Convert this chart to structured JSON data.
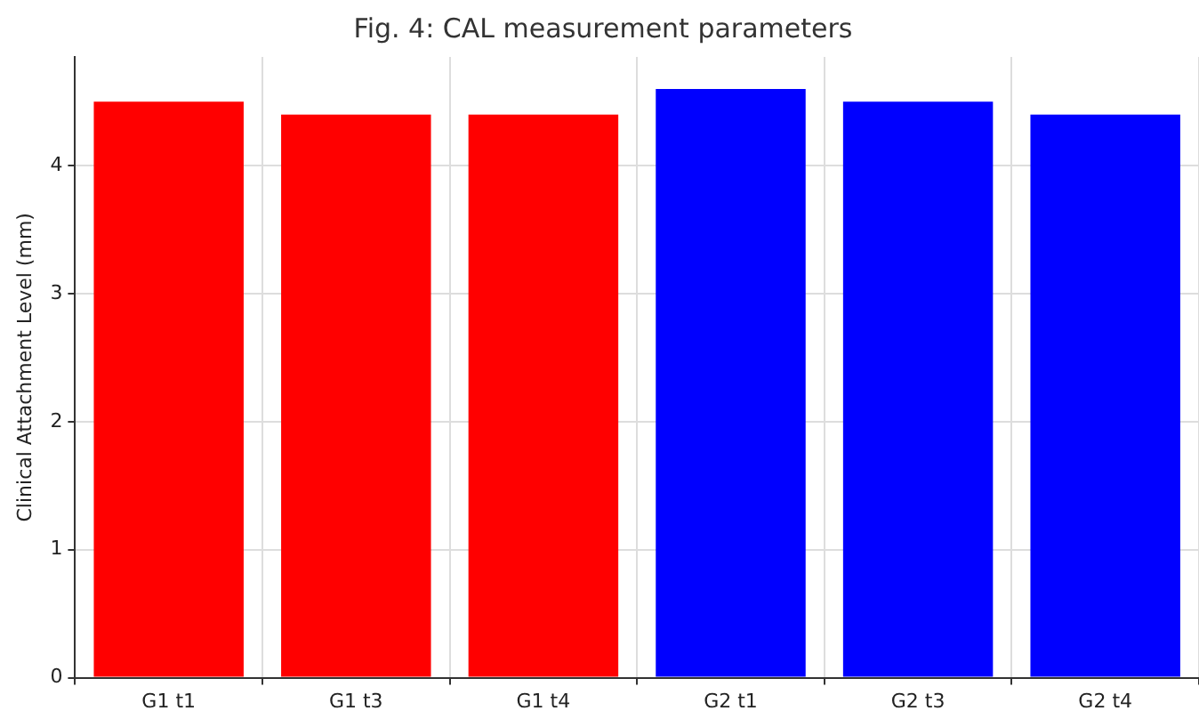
{
  "chart_data": {
    "type": "bar",
    "title": "Fig. 4: CAL measurement parameters",
    "ylabel": "Clinical Attachment Level (mm)",
    "categories": [
      "G1 t1",
      "G1 t3",
      "G1 t4",
      "G2 t1",
      "G2 t3",
      "G2 t4"
    ],
    "values": [
      4.5,
      4.4,
      4.4,
      4.6,
      4.5,
      4.4
    ],
    "colors": [
      "#ff0000",
      "#ff0000",
      "#ff0000",
      "#0000ff",
      "#0000ff",
      "#0000ff"
    ],
    "ylim": [
      0,
      4.85
    ],
    "yticks": [
      0,
      1,
      2,
      3,
      4
    ],
    "grid": true,
    "legend": false
  }
}
